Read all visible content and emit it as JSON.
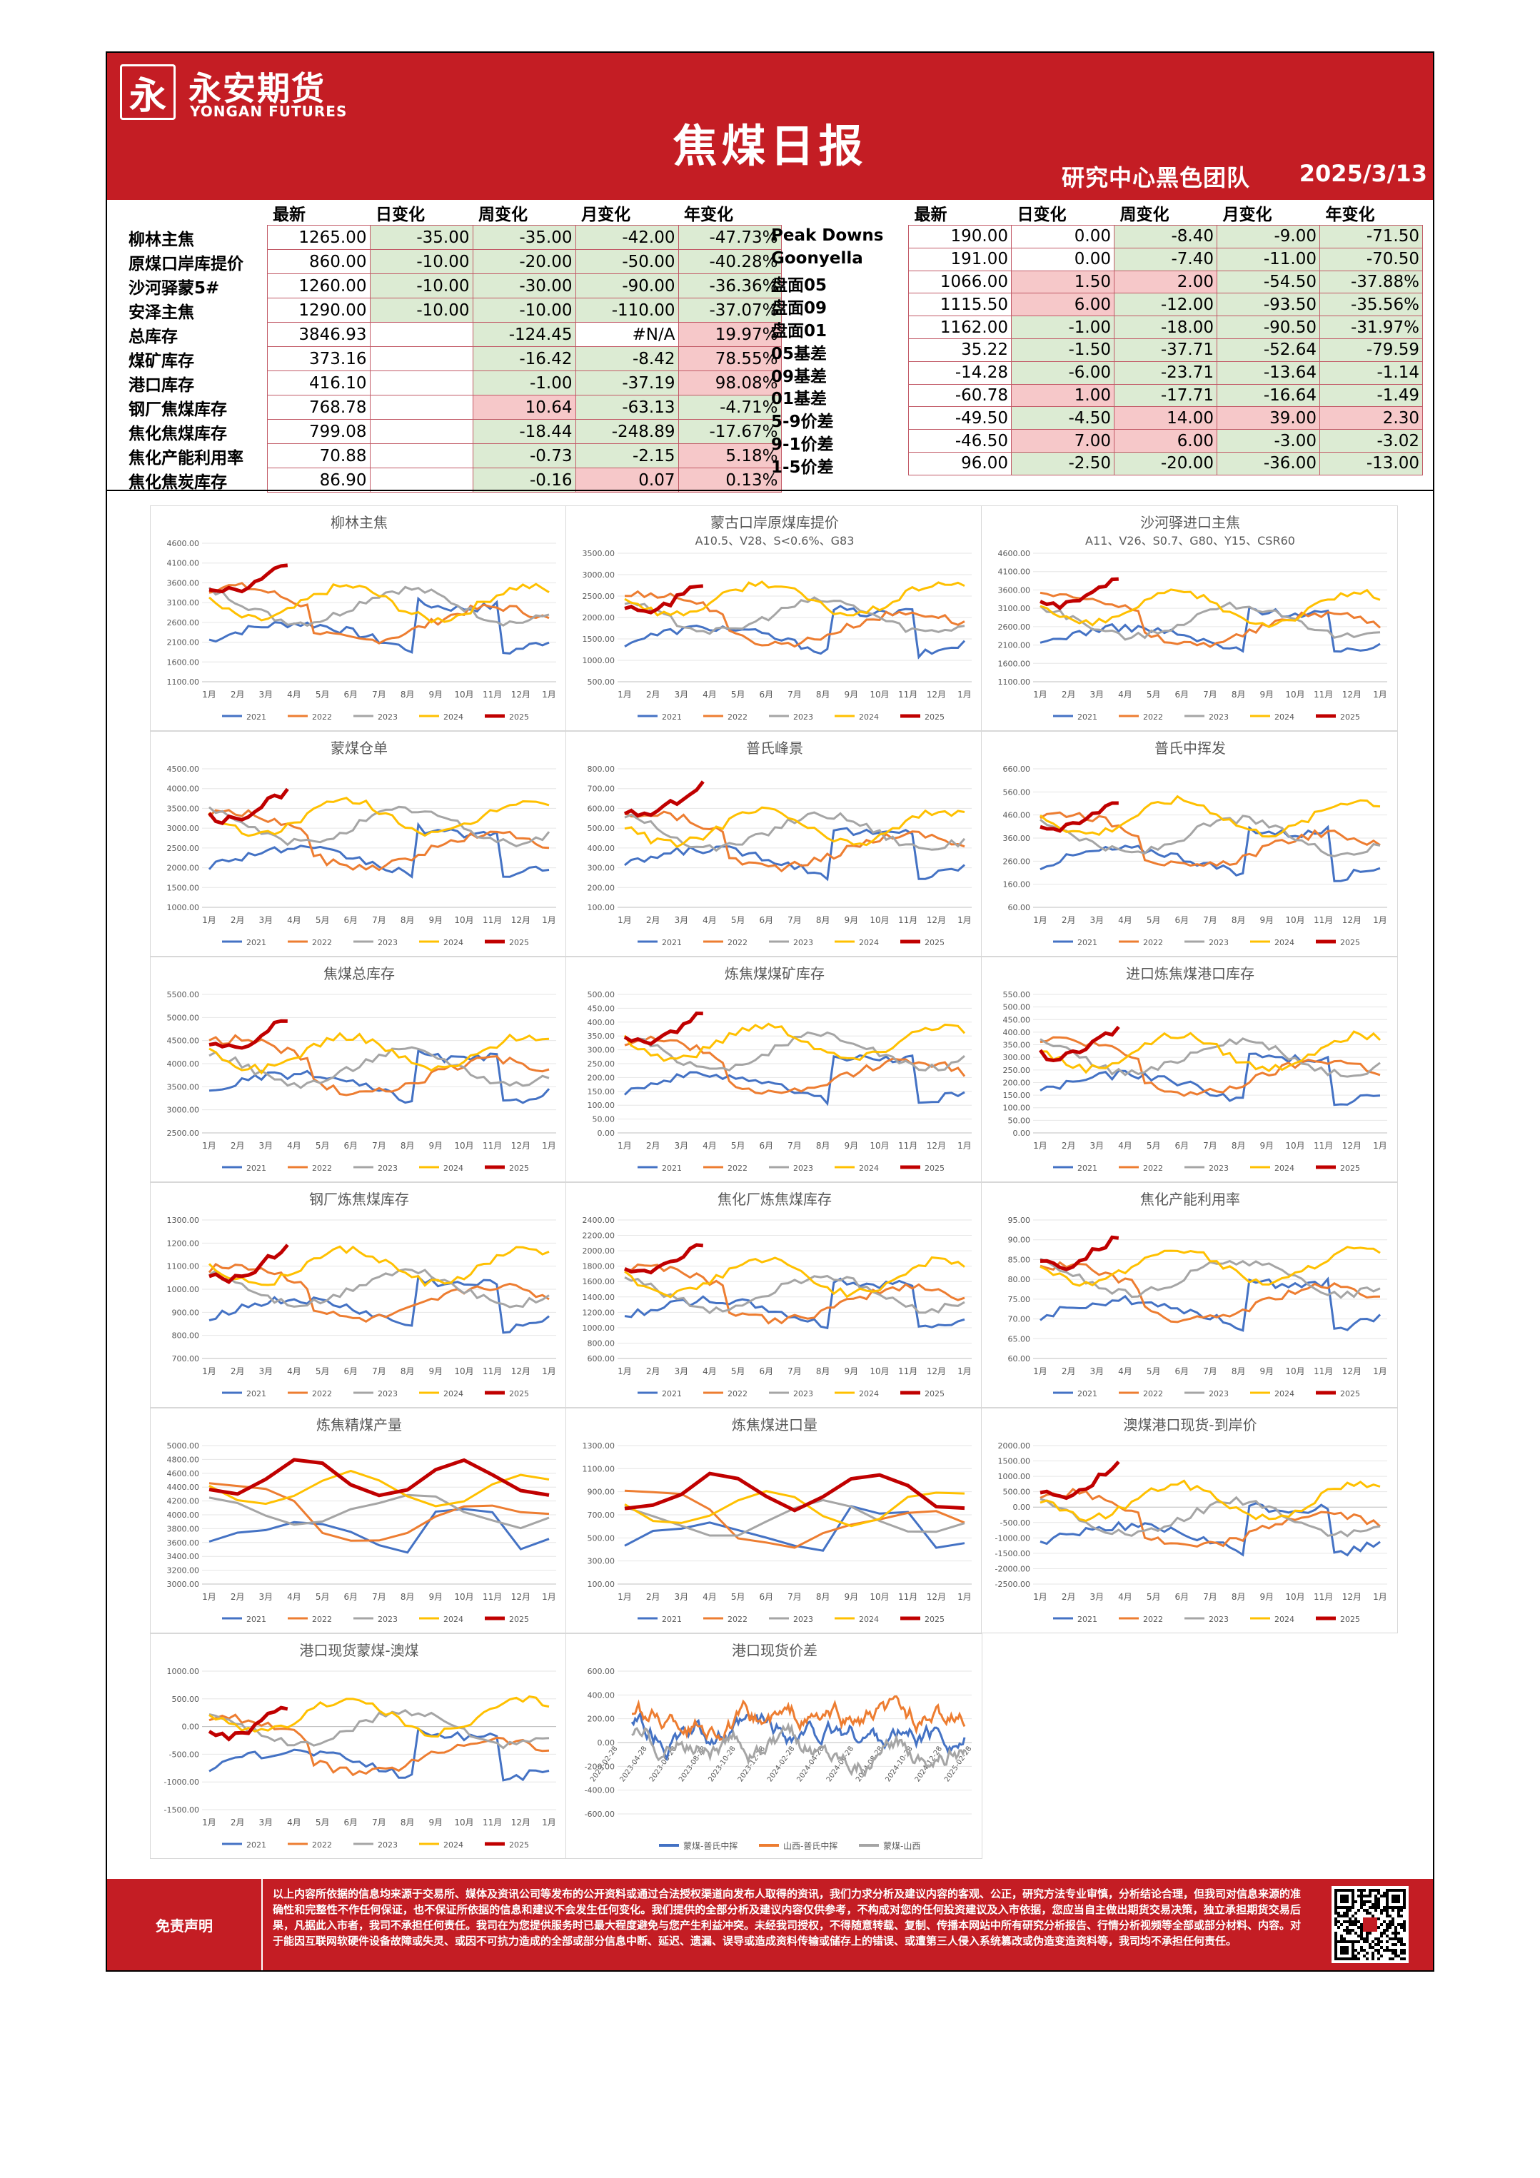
{
  "header": {
    "logo_cn": "永安期货",
    "logo_en": "YONGAN FUTURES",
    "logo_mark": "永",
    "title": "焦煤日报",
    "team": "研究中心黑色团队",
    "date": "2025/3/13"
  },
  "colors": {
    "brand_red": "#c41d24",
    "pos_fill": "#f6c8c9",
    "neg_fill": "#dcebd3"
  },
  "table_headers": [
    "最新",
    "日变化",
    "周变化",
    "月变化",
    "年变化"
  ],
  "table_left": [
    {
      "name": "柳林主焦",
      "v": [
        "1265.00",
        "-35.00",
        "-35.00",
        "-42.00",
        "-47.73%"
      ]
    },
    {
      "name": "原煤口岸库提价",
      "v": [
        "860.00",
        "-10.00",
        "-20.00",
        "-50.00",
        "-40.28%"
      ]
    },
    {
      "name": "沙河驿蒙5#",
      "v": [
        "1260.00",
        "-10.00",
        "-30.00",
        "-90.00",
        "-36.36%"
      ]
    },
    {
      "name": "安泽主焦",
      "v": [
        "1290.00",
        "-10.00",
        "-10.00",
        "-110.00",
        "-37.07%"
      ]
    },
    {
      "name": "总库存",
      "v": [
        "3846.93",
        "",
        "-124.45",
        "#N/A",
        "19.97%"
      ]
    },
    {
      "name": "煤矿库存",
      "v": [
        "373.16",
        "",
        "-16.42",
        "-8.42",
        "78.55%"
      ]
    },
    {
      "name": "港口库存",
      "v": [
        "416.10",
        "",
        "-1.00",
        "-37.19",
        "98.08%"
      ]
    },
    {
      "name": "钢厂焦煤库存",
      "v": [
        "768.78",
        "",
        "10.64",
        "-63.13",
        "-4.71%"
      ]
    },
    {
      "name": "焦化焦煤库存",
      "v": [
        "799.08",
        "",
        "-18.44",
        "-248.89",
        "-17.67%"
      ]
    },
    {
      "name": "焦化产能利用率",
      "v": [
        "70.88",
        "",
        "-0.73",
        "-2.15",
        "5.18%"
      ]
    },
    {
      "name": "焦化焦炭库存",
      "v": [
        "86.90",
        "",
        "-0.16",
        "0.07",
        "0.13%"
      ]
    }
  ],
  "table_right": [
    {
      "name": "Peak Downs",
      "v": [
        "190.00",
        "0.00",
        "-8.40",
        "-9.00",
        "-71.50"
      ]
    },
    {
      "name": "Goonyella",
      "v": [
        "191.00",
        "0.00",
        "-7.40",
        "-11.00",
        "-70.50"
      ]
    },
    {
      "name": "盘面05",
      "v": [
        "1066.00",
        "1.50",
        "2.00",
        "-54.50",
        "-37.88%"
      ]
    },
    {
      "name": "盘面09",
      "v": [
        "1115.50",
        "6.00",
        "-12.00",
        "-93.50",
        "-35.56%"
      ]
    },
    {
      "name": "盘面01",
      "v": [
        "1162.00",
        "-1.00",
        "-18.00",
        "-90.50",
        "-31.97%"
      ]
    },
    {
      "name": "05基差",
      "v": [
        "35.22",
        "-1.50",
        "-37.71",
        "-52.64",
        "-79.59"
      ]
    },
    {
      "name": "09基差",
      "v": [
        "-14.28",
        "-6.00",
        "-23.71",
        "-13.64",
        "-1.14"
      ]
    },
    {
      "name": "01基差",
      "v": [
        "-60.78",
        "1.00",
        "-17.71",
        "-16.64",
        "-1.49"
      ]
    },
    {
      "name": "5-9价差",
      "v": [
        "-49.50",
        "-4.50",
        "14.00",
        "39.00",
        "2.30"
      ]
    },
    {
      "name": "9-1价差",
      "v": [
        "-46.50",
        "7.00",
        "6.00",
        "-3.00",
        "-3.02"
      ]
    },
    {
      "name": "1-5价差",
      "v": [
        "96.00",
        "-2.50",
        "-20.00",
        "-36.00",
        "-13.00"
      ]
    }
  ],
  "months": [
    "1月",
    "2月",
    "3月",
    "4月",
    "5月",
    "6月",
    "7月",
    "8月",
    "9月",
    "10月",
    "11月",
    "12月",
    "1月"
  ],
  "year_series": [
    {
      "name": "2021",
      "color": "#4472c4"
    },
    {
      "name": "2022",
      "color": "#ed7d31"
    },
    {
      "name": "2023",
      "color": "#a5a5a5"
    },
    {
      "name": "2024",
      "color": "#ffc000"
    },
    {
      "name": "2025",
      "color": "#c00000"
    }
  ],
  "charts": [
    {
      "title": "柳林主焦",
      "subtitle": "",
      "ticks": [
        "1100.00",
        "1600.00",
        "2100.00",
        "2600.00",
        "3100.00",
        "3600.00",
        "4100.00",
        "4600.00"
      ],
      "ylim": [
        1100,
        4600
      ],
      "type": "seasonal"
    },
    {
      "title": "蒙古口岸原煤库提价",
      "subtitle": "A10.5、V28、S<0.6%、G83",
      "ticks": [
        "500.00",
        "1000.00",
        "1500.00",
        "2000.00",
        "2500.00",
        "3000.00",
        "3500.00"
      ],
      "ylim": [
        500,
        3500
      ],
      "type": "seasonal"
    },
    {
      "title": "沙河驿进口主焦",
      "subtitle": "A11、V26、S0.7、G80、Y15、CSR60",
      "ticks": [
        "1100.00",
        "1600.00",
        "2100.00",
        "2600.00",
        "3100.00",
        "3600.00",
        "4100.00",
        "4600.00"
      ],
      "ylim": [
        1100,
        4600
      ],
      "type": "seasonal"
    },
    {
      "title": "蒙煤仓单",
      "subtitle": "",
      "ticks": [
        "1000.00",
        "1500.00",
        "2000.00",
        "2500.00",
        "3000.00",
        "3500.00",
        "4000.00",
        "4500.00"
      ],
      "ylim": [
        1000,
        4500
      ],
      "type": "seasonal"
    },
    {
      "title": "普氏峰景",
      "subtitle": "",
      "ticks": [
        "100.00",
        "200.00",
        "300.00",
        "400.00",
        "500.00",
        "600.00",
        "700.00",
        "800.00"
      ],
      "ylim": [
        100,
        800
      ],
      "type": "seasonal"
    },
    {
      "title": "普氏中挥发",
      "subtitle": "",
      "ticks": [
        "60.00",
        "160.00",
        "260.00",
        "360.00",
        "460.00",
        "560.00",
        "660.00"
      ],
      "ylim": [
        60,
        660
      ],
      "type": "seasonal"
    },
    {
      "title": "焦煤总库存",
      "subtitle": "",
      "ticks": [
        "2500.00",
        "3000.00",
        "3500.00",
        "4000.00",
        "4500.00",
        "5000.00",
        "5500.00"
      ],
      "ylim": [
        2500,
        5500
      ],
      "type": "seasonal"
    },
    {
      "title": "炼焦煤煤矿库存",
      "subtitle": "",
      "ticks": [
        "0.00",
        "50.00",
        "100.00",
        "150.00",
        "200.00",
        "250.00",
        "300.00",
        "350.00",
        "400.00",
        "450.00",
        "500.00"
      ],
      "ylim": [
        0,
        500
      ],
      "type": "seasonal"
    },
    {
      "title": "进口炼焦煤港口库存",
      "subtitle": "",
      "ticks": [
        "0.00",
        "50.00",
        "100.00",
        "150.00",
        "200.00",
        "250.00",
        "300.00",
        "350.00",
        "400.00",
        "450.00",
        "500.00",
        "550.00"
      ],
      "ylim": [
        0,
        550
      ],
      "type": "seasonal"
    },
    {
      "title": "钢厂炼焦煤库存",
      "subtitle": "",
      "ticks": [
        "700.00",
        "800.00",
        "900.00",
        "1000.00",
        "1100.00",
        "1200.00",
        "1300.00"
      ],
      "ylim": [
        700,
        1300
      ],
      "type": "seasonal"
    },
    {
      "title": "焦化厂炼焦煤库存",
      "subtitle": "",
      "ticks": [
        "600.00",
        "800.00",
        "1000.00",
        "1200.00",
        "1400.00",
        "1600.00",
        "1800.00",
        "2000.00",
        "2200.00",
        "2400.00"
      ],
      "ylim": [
        600,
        2400
      ],
      "type": "seasonal"
    },
    {
      "title": "焦化产能利用率",
      "subtitle": "",
      "ticks": [
        "60.00",
        "65.00",
        "70.00",
        "75.00",
        "80.00",
        "85.00",
        "90.00",
        "95.00"
      ],
      "ylim": [
        60,
        95
      ],
      "type": "seasonal"
    },
    {
      "title": "炼焦精煤产量",
      "subtitle": "",
      "ticks": [
        "3000.00",
        "3200.00",
        "3400.00",
        "3600.00",
        "3800.00",
        "4000.00",
        "4200.00",
        "4400.00",
        "4600.00",
        "4800.00",
        "5000.00"
      ],
      "ylim": [
        3000,
        5000
      ],
      "type": "monthly"
    },
    {
      "title": "炼焦煤进口量",
      "subtitle": "",
      "ticks": [
        "100.00",
        "300.00",
        "500.00",
        "700.00",
        "900.00",
        "1100.00",
        "1300.00"
      ],
      "ylim": [
        100,
        1300
      ],
      "type": "monthly"
    },
    {
      "title": "澳煤港口现货-到岸价",
      "subtitle": "",
      "ticks": [
        "-2500.00",
        "-2000.00",
        "-1500.00",
        "-1000.00",
        "-500.00",
        "0.00",
        "500.00",
        "1000.00",
        "1500.00",
        "2000.00"
      ],
      "ylim": [
        -2500,
        2000
      ],
      "type": "seasonal"
    },
    {
      "title": "港口现货蒙煤-澳煤",
      "subtitle": "",
      "ticks": [
        "-1500.00",
        "-1000.00",
        "-500.00",
        "0.00",
        "500.00",
        "1000.00"
      ],
      "ylim": [
        -1500,
        1000
      ],
      "type": "seasonal"
    },
    {
      "title": "港口现货价差",
      "subtitle": "",
      "ticks": [
        "-600.00",
        "-400.00",
        "-200.00",
        "0.00",
        "200.00",
        "400.00",
        "600.00"
      ],
      "ylim": [
        -600,
        600
      ],
      "type": "spread",
      "xdates": [
        "2023-02-28",
        "2023-04-28",
        "2023-06-28",
        "2023-08-28",
        "2023-10-28",
        "2023-12-28",
        "2024-02-28",
        "2024-04-28",
        "2024-06-28",
        "2024-08-28",
        "2024-10-28",
        "2024-12-28",
        "2025-02-28"
      ],
      "legend": [
        {
          "name": "蒙煤-普氏中挥",
          "color": "#4472c4"
        },
        {
          "name": "山西-普氏中挥",
          "color": "#ed7d31"
        },
        {
          "name": "蒙煤-山西",
          "color": "#a5a5a5"
        }
      ]
    }
  ],
  "footer": {
    "title": "免责声明",
    "text": "以上内容所依据的信息均来源于交易所、媒体及资讯公司等发布的公开资料或通过合法授权渠道向发布人取得的资讯，我们力求分析及建议内容的客观、公正，研究方法专业审慎，分析结论合理，但我司对信息来源的准确性和完整性不作任何保证，也不保证所依据的信息和建议不会发生任何变化。我们提供的全部分析及建议内容仅供参考，不构成对您的任何投资建议及入市依据，您应当自主做出期货交易决策，独立承担期货交易后果，凡据此入市者，我司不承担任何责任。我司在为您提供服务时已最大程度避免与您产生利益冲突。未经我司授权，不得随意转载、复制、传播本网站中所有研究分析报告、行情分析视频等全部或部分材料、内容。对于能因互联网软硬件设备故障或失灵、或因不可抗力造成的全部或部分信息中断、延迟、遗漏、误导或造成资料传输或储存上的错误、或遭第三人侵入系统篡改或伪造变造资料等，我司均不承担任何责任。"
  }
}
